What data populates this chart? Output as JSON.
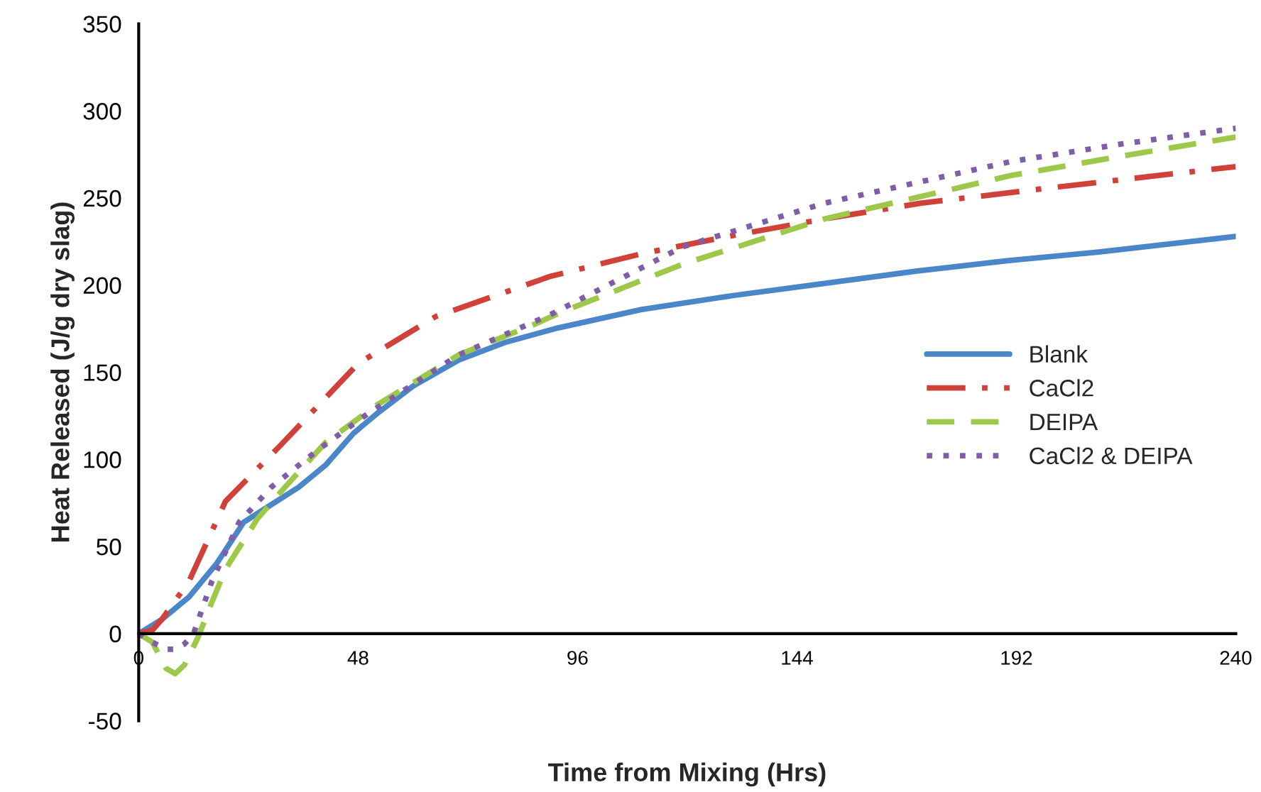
{
  "chart_data": {
    "type": "line",
    "xlabel": "Time from Mixing (Hrs)",
    "ylabel": "Heat Released (J/g dry slag)",
    "xlim": [
      0,
      240
    ],
    "xticks": [
      0,
      48,
      96,
      144,
      192,
      240
    ],
    "ylim": [
      -50,
      350
    ],
    "yticks": [
      -50,
      0,
      50,
      100,
      150,
      200,
      250,
      300,
      350
    ],
    "grid": false,
    "legend": "right",
    "series": [
      {
        "name": "Blank",
        "color": "#4a86c8",
        "line_style": "solid",
        "x": [
          0,
          5,
          11,
          17,
          23,
          29,
          35,
          41,
          47,
          52,
          60,
          70,
          80,
          91,
          110,
          130,
          150,
          170,
          190,
          210,
          240
        ],
        "values": [
          0,
          8,
          21,
          40,
          64,
          74,
          84,
          97,
          115,
          126,
          142,
          157,
          167,
          175,
          186,
          194,
          201,
          208,
          214,
          219,
          228
        ]
      },
      {
        "name": "CaCl2",
        "color": "#d0413a",
        "line_style": "dashdot",
        "x": [
          0,
          3,
          5,
          11,
          19,
          31,
          48,
          65,
          90,
          110,
          129,
          150,
          171,
          200,
          240
        ],
        "values": [
          0,
          2,
          8,
          30,
          76,
          108,
          155,
          182,
          205,
          218,
          228,
          238,
          247,
          256,
          268
        ]
      },
      {
        "name": "DEIPA",
        "color": "#9dc84a",
        "line_style": "dashed",
        "x": [
          0,
          3,
          6,
          8,
          10,
          13,
          16,
          19,
          26,
          32,
          41,
          52,
          70,
          87,
          92,
          119,
          150,
          191,
          215,
          240
        ],
        "values": [
          0,
          -5,
          -20,
          -23,
          -18,
          -2,
          18,
          37,
          66,
          84,
          110,
          131,
          160,
          178,
          184,
          212,
          238,
          263,
          274,
          285
        ]
      },
      {
        "name": "CaCl2 & DEIPA",
        "color": "#7e5ea8",
        "line_style": "dotted",
        "x": [
          0,
          3,
          6,
          8,
          10,
          12,
          16,
          22,
          29,
          39,
          50,
          70,
          90,
          119,
          150,
          191,
          215,
          240
        ],
        "values": [
          0,
          -5,
          -9,
          -9,
          -6,
          0,
          30,
          64,
          84,
          105,
          126,
          160,
          183,
          222,
          247,
          271,
          281,
          290
        ]
      }
    ]
  }
}
